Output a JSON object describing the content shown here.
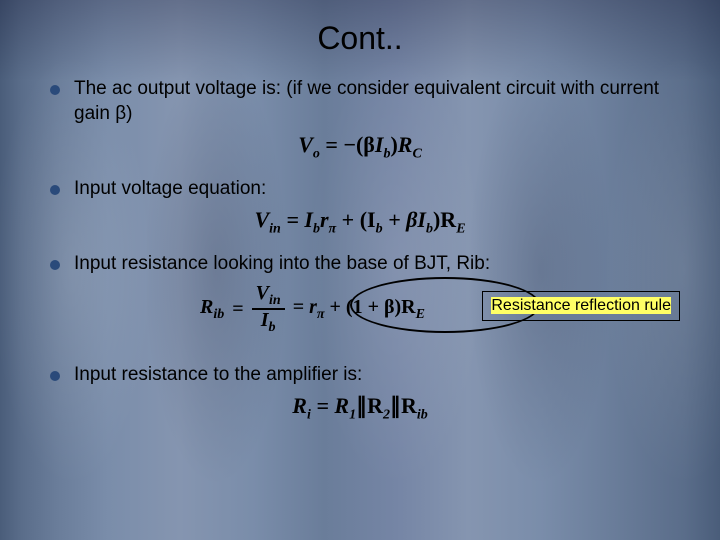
{
  "title": "Cont..",
  "bullets": [
    "The ac output voltage is: (if we consider equivalent circuit with current gain β)",
    "Input voltage equation:",
    "Input resistance looking into the base of BJT, Rib:",
    "Input resistance to the amplifier is:"
  ],
  "callout": "Resistance reflection rule",
  "equations": {
    "vo": {
      "lhs": "V",
      "lhs_sub": "o",
      "rhs_a": " = −(β",
      "rhs_b": "I",
      "rhs_b_sub": "b",
      "rhs_c": ")",
      "rhs_d": "R",
      "rhs_d_sub": "C"
    },
    "vin": {
      "lhs": "V",
      "lhs_sub": "in",
      "t1": " = I",
      "t1_sub": "b",
      "t2": "r",
      "t2_sub": "π",
      "t3": " + (I",
      "t3_sub": "b",
      "t4": " + βI",
      "t4_sub": "b",
      "t5": ")R",
      "t5_sub": "E"
    },
    "rib": {
      "lhs": "R",
      "lhs_sub": "ib",
      "num_a": "V",
      "num_sub": "in",
      "den_a": "I",
      "den_sub": "b",
      "r_a": " = r",
      "r_a_sub": "π",
      "r_b": " + (1 + β)R",
      "r_b_sub": "E"
    },
    "ri": {
      "lhs": "R",
      "lhs_sub": "i",
      "a": " = R",
      "a_sub": "1",
      "b": "∥R",
      "b_sub": "2",
      "c": "∥R",
      "c_sub": "ib"
    }
  },
  "colors": {
    "bullet": "#2a4a7a",
    "highlight": "#ffff66",
    "text": "#000000"
  }
}
